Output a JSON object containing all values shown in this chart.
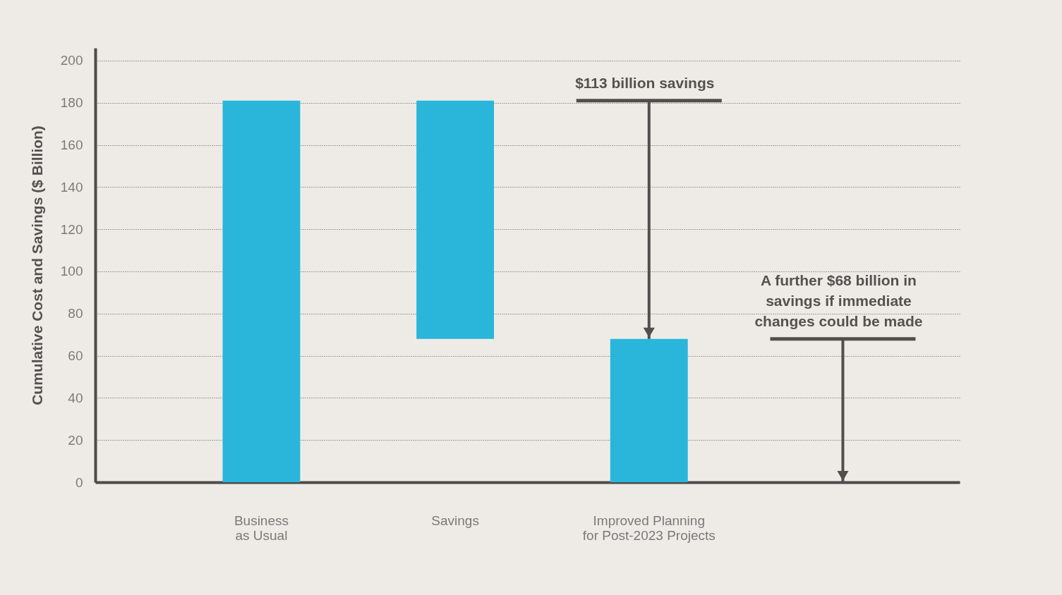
{
  "chart_data": {
    "type": "bar",
    "ylabel": "Cumulative Cost and Savings ($ Billion)",
    "categories": [
      "Business\nas Usual",
      "Savings",
      "Improved Planning\nfor Post-2023 Projects",
      null
    ],
    "values": [
      181,
      113,
      68,
      null
    ],
    "base": [
      0,
      68,
      0,
      null
    ],
    "color": "#29b6da",
    "ylim": [
      0,
      206
    ],
    "yticks": [
      0,
      20,
      40,
      60,
      80,
      100,
      120,
      140,
      160,
      180,
      200
    ],
    "grid": "y",
    "annotations": [
      {
        "text": "$113 billion savings",
        "x": "Improved Planning\nfor Post-2023 Projects",
        "y": 68
      },
      "A further $68 billion in\nsavings if immediate\nchanges could be made"
    ],
    "legend": false
  }
}
